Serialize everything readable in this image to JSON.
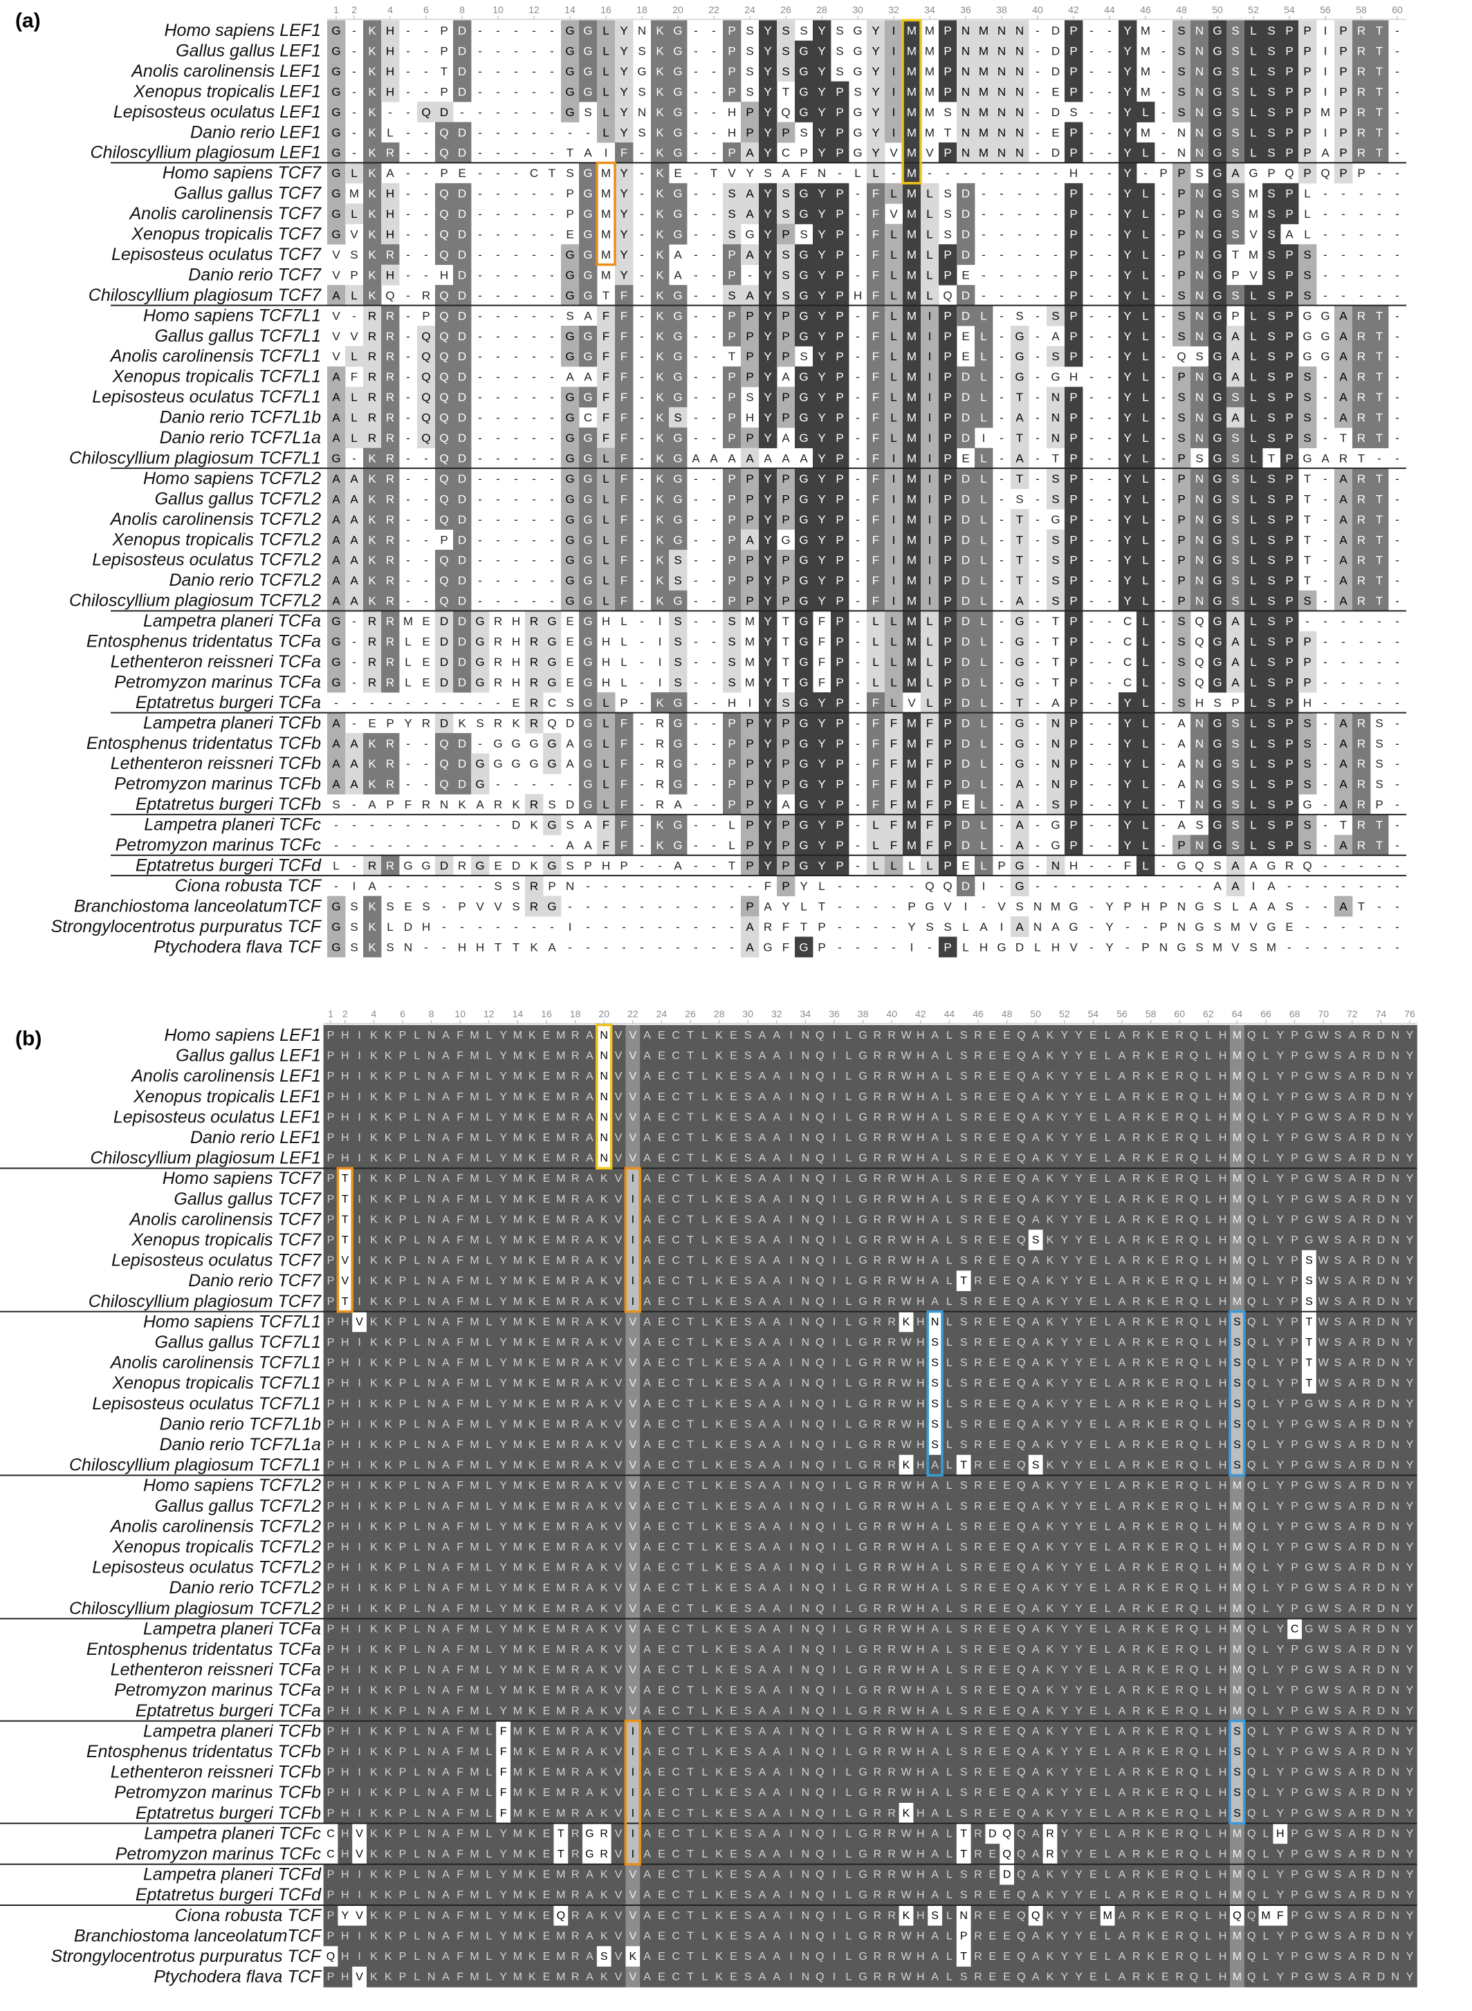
{
  "panels": [
    {
      "label": "(a)",
      "ruler": [
        1,
        2,
        4,
        6,
        8,
        10,
        12,
        14,
        16,
        18,
        20,
        22,
        24,
        26,
        28,
        30,
        32,
        34,
        36,
        38,
        40,
        42,
        44,
        46,
        48,
        50,
        52,
        54,
        56,
        58,
        60
      ],
      "groups": [
        [
          {
            "name": "Homo sapiens LEF1",
            "seq": "G-KH--PD-----GGLYNKG--PSYSSYSGYIMMPNMNN-DP--YM-SNGSLSPPIPRT-"
          },
          {
            "name": "Gallus gallus LEF1",
            "seq": "G-KH--PD-----GGLYSKG--PSYSGYSGYIMMPNMNN-DP--YM-SNGSLSPPIPRT-"
          },
          {
            "name": "Anolis carolinensis LEF1",
            "seq": "G-KH--TD-----GGLYGKG--PSYSGYSGYIMMPNMNN-DP--YM-SNGSLSPPIPRT-"
          },
          {
            "name": "Xenopus tropicalis LEF1",
            "seq": "G-KH--PD-----GGLYSKG--PSYTGYPSYIMMPNMNN-EP--YM-SNGSLSPPIPRT-"
          },
          {
            "name": "Lepisosteus oculatus LEF1",
            "seq": "G-K--QD------GSLYNKG--HPYQGYPGYIMMSNMNN-DS--YL-SNGSLSPPMPRT-"
          },
          {
            "name": "Danio rerio LEF1",
            "seq": "G-KL--QD-------LYSKG--HPYPSYPGYIMMTNMNN-EP--YM-NNGSLSPPIPRT-"
          },
          {
            "name": "Chiloscyllium plagiosum LEF1",
            "seq": "G-KR--QD-----TAIF-KG--PAYCPYPGYVMVPNMNN-DP--YL-NNGSLSPPAPRT-"
          }
        ],
        [
          {
            "name": "Homo sapiens TCF7",
            "seq": "GLKA--PE---CTSGMY-KE-TVYSAFN-LL-M--------H--Y-PPSGAGPQPQPP--"
          },
          {
            "name": "Gallus gallus TCF7",
            "seq": "GMKH--QD-----PGMY-KG--SAYSGYP-FLMLSD-----P--YL-PNGSMSPL-----"
          },
          {
            "name": "Anolis carolinensis TCF7",
            "seq": "GLKH--QD-----PGMY-KG--SAYSGYP-FVMLSD-----P--YL-PNGSMSPL-----"
          },
          {
            "name": "Xenopus tropicalis TCF7",
            "seq": "GVKH--QD-----EGMY-KG--SGYPSYP-FLMLSD-----P--YL-PNGSVSAL-----"
          },
          {
            "name": "Lepisosteus oculatus TCF7",
            "seq": "VSKR--QD-----GGMY-KA--PAYSGYP-FLMLPD-----P--YL-PNGTMSPS-----"
          },
          {
            "name": "Danio rerio TCF7",
            "seq": "VPKH--HD-----GGMY-KA--P-YSGYP-FLMLPE-----P--YL-PNGPVSPS-----"
          },
          {
            "name": "Chiloscyllium plagiosum TCF7",
            "seq": "ALKQ-RQD-----GGTF-KG--SAYSGYPHFLMLQD-----P--YL-SNGSLSPS-----"
          }
        ],
        [
          {
            "name": "Homo sapiens TCF7L1",
            "seq": "V-RR-PQD-----SAFF-KG--PPYPGYP-FLMIPDL-S-SP--YL-SNGPLSPGGART-"
          },
          {
            "name": "Gallus gallus TCF7L1",
            "seq": "VVRR-QQD-----GGFF-KG--PPYPGYP-FLMIPEL-G-AP--YL-SNGALSPGGART-"
          },
          {
            "name": "Anolis carolinensis TCF7L1",
            "seq": "VLRR-QQD-----GGFF-KG--TPYPSYP-FLMIPEL-G-SP--YL-QSGALSPGGART-"
          },
          {
            "name": "Xenopus tropicalis TCF7L1",
            "seq": "AFRR-QQD-----AAFF-KG--PPYAGYP-FLMIPDL-G-GH--YL-PNGALSPS-ART-"
          },
          {
            "name": "Lepisosteus oculatus TCF7L1",
            "seq": "ALRR-QQD-----GGFF-KG--PSYPGYP-FLMIPDL-T-NP--YL-SNGSLSPS-ART-"
          },
          {
            "name": "Danio rerio TCF7L1b",
            "seq": "ALRR-QQD-----GCFF-KS--PHYPGYP-FLMIPDL-A-NP--YL-SNGALSPS-ART-"
          },
          {
            "name": "Danio rerio TCF7L1a",
            "seq": "ALRR-QQD-----GGFF-KG--PPYAGYP-FLMIPDI-T-NP--YL-SNGSLSPS-TRT-"
          },
          {
            "name": "Chiloscyllium plagiosum TCF7L1",
            "seq": "G-KR--QD-----GGLF-KGAAAAAAAYP-FIMIPEL-A-TP--YL-PSGSLTPGART--"
          }
        ],
        [
          {
            "name": "Homo sapiens TCF7L2",
            "seq": "AAKR--QD-----GGLF-KG--PPYPGYP-FIMIPDL-T-SP--YL-PNGSLSPT-ART-"
          },
          {
            "name": "Gallus gallus TCF7L2",
            "seq": "AAKR--QD-----GGLF-KG--PPYPGYP-FIMIPDL-S-SP--YL-PNGSLSPT-ART-"
          },
          {
            "name": "Anolis carolinensis TCF7L2",
            "seq": "AAKR--QD-----GGLF-KG--PPYPGYP-FIMIPDL-T-GP--YL-PNGSLSPT-ART-"
          },
          {
            "name": "Xenopus tropicalis TCF7L2",
            "seq": "AAKR--PD-----GGLF-KG--PAYGGYP-FIMIPDL-T-SP--YL-PNGSLSPT-ART-"
          },
          {
            "name": "Lepisosteus oculatus TCF7L2",
            "seq": "AAKR--QD-----GGLF-KS--PPYPGYP-FIMIPDL-T-SP--YL-PNGSLSPT-ART-"
          },
          {
            "name": "Danio rerio TCF7L2",
            "seq": "AAKR--QD-----GGLF-KS--PPYPGYP-FIMIPDL-T-SP--YL-PNGSLSPT-ART-"
          },
          {
            "name": "Chiloscyllium plagiosum TCF7L2",
            "seq": "AAKR--QD-----GGLF-KG--PPYPGYP-FIMIPDL-A-SP--YL-PNGSLSPS-ART-"
          }
        ],
        [
          {
            "name": "Lampetra planeri TCFa",
            "seq": "G-RRMEDDGRHRGEGHL-IS--SMYTGFP-LLMLPDL-G-TP--CL-SQGALSP------"
          },
          {
            "name": "Entosphenus tridentatus TCFa",
            "seq": "G-RRLEDDGRHRGEGHL-IS--SMYTGFP-LLMLPDL-G-TP--CL-SQGALSPP-----"
          },
          {
            "name": "Lethenteron reissneri TCFa",
            "seq": "G-RRLEDDGRHRGEGHL-IS--SMYTGFP-LLMLPDL-G-TP--CL-SQGALSPP-----"
          },
          {
            "name": "Petromyzon marinus TCFa",
            "seq": "G-RRLEDDGRHRGEGHL-IS--SMYTGFP-LLMLPDL-G-TP--CL-SQGALSPP-----"
          },
          {
            "name": "Eptatretus burgeri TCFa",
            "seq": "----------ERCSGLP-KG--HIYSGYP-FLVLPDL-T-AP--YL-SHSPLSPH-----"
          }
        ],
        [
          {
            "name": "Lampetra planeri TCFb",
            "seq": "A-EPYRDKSRKRQDGLF-RG--PPYPGYP-FFMFPDL-G-NP--YL-ANGSLSPS-ARS-"
          },
          {
            "name": "Entosphenus tridentatus TCFb",
            "seq": "AAKR--QD-GGGGAGLF-RG--PPYPGYP-FFMFPDL-G-NP--YL-ANGSLSPS-ARS-"
          },
          {
            "name": "Lethenteron reissneri TCFb",
            "seq": "AAKR--QDGGGGGAGLF-RG--PPYPGYP-FFMFPDL-G-NP--YL-ANGSLSPS-ARS-"
          },
          {
            "name": "Petromyzon marinus TCFb",
            "seq": "AAKR--QDG-----GLF-RG--PPYPGYP-FFMFPDL-A-NP--YL-ANGSLSPS-ARS-"
          },
          {
            "name": "Eptatretus burgeri TCFb",
            "seq": "S-APFRNKARKRSDGLF-RA--PPYAGYP-FFMFPEL-A-SP--YL-TNGSLSPG-ARP-"
          }
        ],
        [
          {
            "name": "Lampetra planeri TCFc",
            "seq": "----------DKGSAFF-KG--LPYPGYP-LFMFPDL-A-GP--YL-ASGSLSPS-TRT-"
          },
          {
            "name": "Petromyzon marinus TCFc",
            "seq": "-------------AAFF-KG--LPYPGYP-LFMFPDL-A-GP--YL-PNGSLSPS-ART-"
          }
        ],
        [
          {
            "name": "Eptatretus burgeri TCFd",
            "seq": "L-RRGGDRGEDKGSPHP--A--TPYPGYP-LLLLPELPG-NH--FL-GQSAAGRQ-----"
          }
        ],
        [
          {
            "name": "Ciona robusta TCF",
            "seq": "-IA------SSRPN----------FPYL-----QQDI-G----------AAIA-------"
          },
          {
            "name": "Branchiostoma lanceolatumTCF",
            "seq": "GSKSES-PVVSRG----------PAYLT----PGVI-VSNMG-YPHPNGSLAAS--AT--"
          },
          {
            "name": "Strongylocentrotus purpuratus TCF",
            "seq": "GSKLDH-------I---------ARFTP----YSSLAIANAG-Y--PNGSMVGE------"
          },
          {
            "name": "Ptychodera flava TCF",
            "seq": "GSKSN--HHTTKA----------AGFGP----I-PLHGDLHV-Y-PNGSMVSM-------"
          }
        ]
      ]
    },
    {
      "label": "(b)",
      "ruler": [
        1,
        2,
        4,
        6,
        8,
        10,
        12,
        14,
        16,
        18,
        20,
        22,
        24,
        26,
        28,
        30,
        32,
        34,
        36,
        38,
        40,
        42,
        44,
        46,
        48,
        50,
        52,
        54,
        56,
        58,
        60,
        62,
        64,
        66,
        68,
        70,
        72,
        74,
        76
      ],
      "groups": [
        [
          {
            "name": "Homo sapiens LEF1",
            "seq": "PHIKKPLNAFMLYMKEMRANVVAECTLKESAAINQILGRRWHALSREEQAKYYELARKERQLHMQLYPGWSARDNY"
          },
          {
            "name": "Gallus gallus LEF1",
            "seq": "PHIKKPLNAFMLYMKEMRANVVAECTLKESAAINQILGRRWHALSREEQAKYYELARKERQLHMQLYPGWSARDNY"
          },
          {
            "name": "Anolis carolinensis LEF1",
            "seq": "PHIKKPLNAFMLYMKEMRANVVAECTLKESAAINQILGRRWHALSREEQAKYYELARKERQLHMQLYPGWSARDNY"
          },
          {
            "name": "Xenopus tropicalis LEF1",
            "seq": "PHIKKPLNAFMLYMKEMRANVVAECTLKESAAINQILGRRWHALSREEQAKYYELARKERQLHMQLYPGWSARDNY"
          },
          {
            "name": "Lepisosteus oculatus LEF1",
            "seq": "PHIKKPLNAFMLYMKEMRANVVAECTLKESAAINQILGRRWHALSREEQAKYYELARKERQLHMQLYPGWSARDNY"
          },
          {
            "name": "Danio rerio LEF1",
            "seq": "PHIKKPLNAFMLYMKEMRANVVAECTLKESAAINQILGRRWHALSREEQAKYYELARKERQLHMQLYPGWSARDNY"
          },
          {
            "name": "Chiloscyllium plagiosum LEF1",
            "seq": "PHIKKPLNAFMLYMKEMRANVVAECTLKESAAINQILGRRWHALSREEQAKYYELARKERQLHMQLYPGWSARDNY"
          }
        ],
        [
          {
            "name": "Homo sapiens TCF7",
            "seq": "PTIKKPLNAFMLYMKEMRAKVIAECTLKESAAINQILGRRWHALSREEQAKYYELARKERQLHMQLYPGWSARDNY"
          },
          {
            "name": "Gallus gallus TCF7",
            "seq": "PTIKKPLNAFMLYMKEMRAKVIAECTLKESAAINQILGRRWHALSREEQAKYYELARKERQLHMQLYPGWSARDNY"
          },
          {
            "name": "Anolis carolinensis TCF7",
            "seq": "PTIKKPLNAFMLYMKEMRAKVIAECTLKESAAINQILGRRWHALSREEQAKYYELARKERQLHMQLYPGWSARDNY"
          },
          {
            "name": "Xenopus tropicalis TCF7",
            "seq": "PTIKKPLNAFMLYMKEMRAKVIAECTLKESAAINQILGRRWHALSREEQSKYYELARKERQLHMQLYPGWSARDNY"
          },
          {
            "name": "Lepisosteus oculatus TCF7",
            "seq": "PVIKKPLNAFMLYMKEMRAKVIAECTLKESAAINQILGRRWHALSREEQAKYYELARKERQLHMQLYPSWSARDNY"
          },
          {
            "name": "Danio rerio TCF7",
            "seq": "PVIKKPLNAFMLYMKEMRAKVIAECTLKESAAINQILGRRWHALTREEQAKYYELARKERQLHMQLYPSWSARDNY"
          },
          {
            "name": "Chiloscyllium plagiosum TCF7",
            "seq": "PTIKKPLNAFMLYMKEMRAKVIAECTLKESAAINQILGRRWHALSREEQAKYYELARKERQLHMQLYPSWSARDNY"
          }
        ],
        [
          {
            "name": "Homo sapiens TCF7L1",
            "seq": "PHVKKPLNAFMLYMKEMRAKVVAECTLKESAAINQILGRRKHNLSREEQAKYYELARKERQLHSQLYPTWSARDNY"
          },
          {
            "name": "Gallus gallus TCF7L1",
            "seq": "PHIKKPLNAFMLYMKEMRAKVVAECTLKESAAINQILGRRWHSLSREEQAKYYELARKERQLHSQLYPTWSARDNY"
          },
          {
            "name": "Anolis carolinensis TCF7L1",
            "seq": "PHIKKPLNAFMLYMKEMRAKVVAECTLKESAAINQILGRRWHSLSREEQAKYYELARKERQLHSQLYPTWSARDNY"
          },
          {
            "name": "Xenopus tropicalis TCF7L1",
            "seq": "PHIKKPLNAFMLYMKEMRAKVVAECTLKESAAINQILGRRWHSLSREEQAKYYELARKERQLHSQLYPTWSARDNY"
          },
          {
            "name": "Lepisosteus oculatus TCF7L1",
            "seq": "PHIKKPLNAFMLYMKEMRAKVVAECTLKESAAINQILGRRWHSLSREEQAKYYELARKERQLHSQLYPGWSARDNY"
          },
          {
            "name": "Danio rerio TCF7L1b",
            "seq": "PHIKKPLNAFMLYMKEMRAKVVAECTLKESAAINQILGRRWHSLSREEQAKYYELARKERQLHSQLYPGWSARDNY"
          },
          {
            "name": "Danio rerio TCF7L1a",
            "seq": "PHIKKPLNAFMLYMKEMRAKVVAECTLKESAAINQILGRRWHSLSREEQAKYYELARKERQLHSQLYPGWSARDNY"
          },
          {
            "name": "Chiloscyllium plagiosum TCF7L1",
            "seq": "PHIKKPLNAFMLYMKEMRAKVVAECTLKESAAINQILGRRKHALTREEQSKYYELARKERQLHSQLYPGWSARDNY"
          }
        ],
        [
          {
            "name": "Homo sapiens TCF7L2",
            "seq": "PHIKKPLNAFMLYMKEMRAKVVAECTLKESAAINQILGRRWHALSREEQAKYYELARKERQLHMQLYPGWSARDNY"
          },
          {
            "name": "Gallus gallus TCF7L2",
            "seq": "PHIKKPLNAFMLYMKEMRAKVVAECTLKESAAINQILGRRWHALSREEQAKYYELARKERQLHMQLYPGWSARDNY"
          },
          {
            "name": "Anolis carolinensis TCF7L2",
            "seq": "PHIKKPLNAFMLYMKEMRAKVVAECTLKESAAINQILGRRWHALSREEQAKYYELARKERQLHMQLYPGWSARDNY"
          },
          {
            "name": "Xenopus tropicalis TCF7L2",
            "seq": "PHIKKPLNAFMLYMKEMRAKVVAECTLKESAAINQILGRRWHALSREEQAKYYELARKERQLHMQLYPGWSARDNY"
          },
          {
            "name": "Lepisosteus oculatus TCF7L2",
            "seq": "PHIKKPLNAFMLYMKEMRAKVVAECTLKESAAINQILGRRWHALSREEQAKYYELARKERQLHMQLYPGWSARDNY"
          },
          {
            "name": "Danio rerio TCF7L2",
            "seq": "PHIKKPLNAFMLYMKEMRAKVVAECTLKESAAINQILGRRWHALSREEQAKYYELARKERQLHMQLYPGWSARDNY"
          },
          {
            "name": "Chiloscyllium plagiosum TCF7L2",
            "seq": "PHIKKPLNAFMLYMKEMRAKVVAECTLKESAAINQILGRRWHALSREEQAKYYELARKERQLHMQLYPGWSARDNY"
          }
        ],
        [
          {
            "name": "Lampetra planeri TCFa",
            "seq": "PHIKKPLNAFMLYMKEMRAKVVAECTLKESAAINQILGRRWHALSREEQAKYYELARKERQLHMQLYCGWSARDNY"
          },
          {
            "name": "Entosphenus tridentatus TCFa",
            "seq": "PHIKKPLNAFMLYMKEMRAKVVAECTLKESAAINQILGRRWHALSREEQAKYYELARKERQLHMQLYPGWSARDNY"
          },
          {
            "name": "Lethenteron reissneri TCFa",
            "seq": "PHIKKPLNAFMLYMKEMRAKVVAECTLKESAAINQILGRRWHALSREEQAKYYELARKERQLHMQLYPGWSARDNY"
          },
          {
            "name": "Petromyzon marinus TCFa",
            "seq": "PHIKKPLNAFMLYMKEMRAKVVAECTLKESAAINQILGRRWHALSREEQAKYYELARKERQLHMQLYPGWSARDNY"
          },
          {
            "name": "Eptatretus burgeri TCFa",
            "seq": "PHIKKPLNAFMLYMKEMRAKVVAECTLKESAAINQILGRRWHALSREEQAKYYELARKERQLHMQLYPGWSARDNY"
          }
        ],
        [
          {
            "name": "Lampetra planeri TCFb",
            "seq": "PHIKKPLNAFMLFMKEMRAKVIAECTLKESAAINQILGRRWHALSREEQAKYYELARKERQLHSQLYPGWSARDNY"
          },
          {
            "name": "Entosphenus tridentatus TCFb",
            "seq": "PHIKKPLNAFMLFMKEMRAKVIAECTLKESAAINQILGRRWHALSREEQAKYYELARKERQLHSQLYPGWSARDNY"
          },
          {
            "name": "Lethenteron reissneri TCFb",
            "seq": "PHIKKPLNAFMLFMKEMRAKVIAECTLKESAAINQILGRRWHALSREEQAKYYELARKERQLHSQLYPGWSARDNY"
          },
          {
            "name": "Petromyzon marinus TCFb",
            "seq": "PHIKKPLNAFMLFMKEMRAKVIAECTLKESAAINQILGRRWHALSREEQAKYYELARKERQLHSQLYPGWSARDNY"
          },
          {
            "name": "Eptatretus burgeri TCFb",
            "seq": "PHIKKPLNAFMLFMKEMRAKVIAECTLKESAAINQILGRRKHALSREEQAKYYELARKERQLHSQLYPGWSARDNY"
          }
        ],
        [
          {
            "name": "Lampetra planeri TCFc",
            "seq": "CHVKKPLNAFMLYMKETRGRVIAECTLKESAAINQILGRRWHALTRDQQARYYELARKERQLHMQLHPGWSARDNY"
          },
          {
            "name": "Petromyzon marinus TCFc",
            "seq": "CHVKKPLNAFMLYMKETRGRVIAECTLKESAAINQILGRRWHALTREQQARYYELARKERQLHMQLYPGWSARDNY"
          }
        ],
        [
          {
            "name": "Lampetra planeri TCFd",
            "seq": "PHIKKPLNAFMLYMKEMRAKVVAECTLKESAAINQILGRRWHALSREDQAKYYELARKERQLHMQLYPGWSARDNY"
          },
          {
            "name": "Eptatretus burgeri TCFd",
            "seq": "PHIKKPLNAFMLYMKEMRAKVVAECTLKESAAINQILGRRWHALSREEQAKYYELARKERQLHMQLYPGWSARDNY"
          }
        ],
        [
          {
            "name": "Ciona robusta TCF",
            "seq": "PYVKKPLNAFMLYMKEQRAKVVAECTLKESAAINQILGRRKHSLNREEQQKYYEMARKERQLHQQMFPGWSARDNY"
          },
          {
            "name": "Branchiostoma lanceolatumTCF",
            "seq": "PHIKKPLNAFMLYMKEMRAKVVAECTLKESAAINQILGRRWHALPREEQAKYYELARKERQLHMQLYPGWSARDNY"
          },
          {
            "name": "Strongylocentrotus purpuratus TCF",
            "seq": "QHIKKPLNAFMLYMKEMRASVKAECTLKESAAINQILGRRWHALTREEQAKYYELARKERQLHMQLYPGWSARDNY"
          },
          {
            "name": "Ptychodera flava TCF",
            "seq": "PHVKKPLNAFMLYMKEMRAKVVAECTLKESAAINQILGRRWHALSREEQAKYYELARKERQLHMQLYPGWSARDNY"
          }
        ]
      ]
    }
  ]
}
